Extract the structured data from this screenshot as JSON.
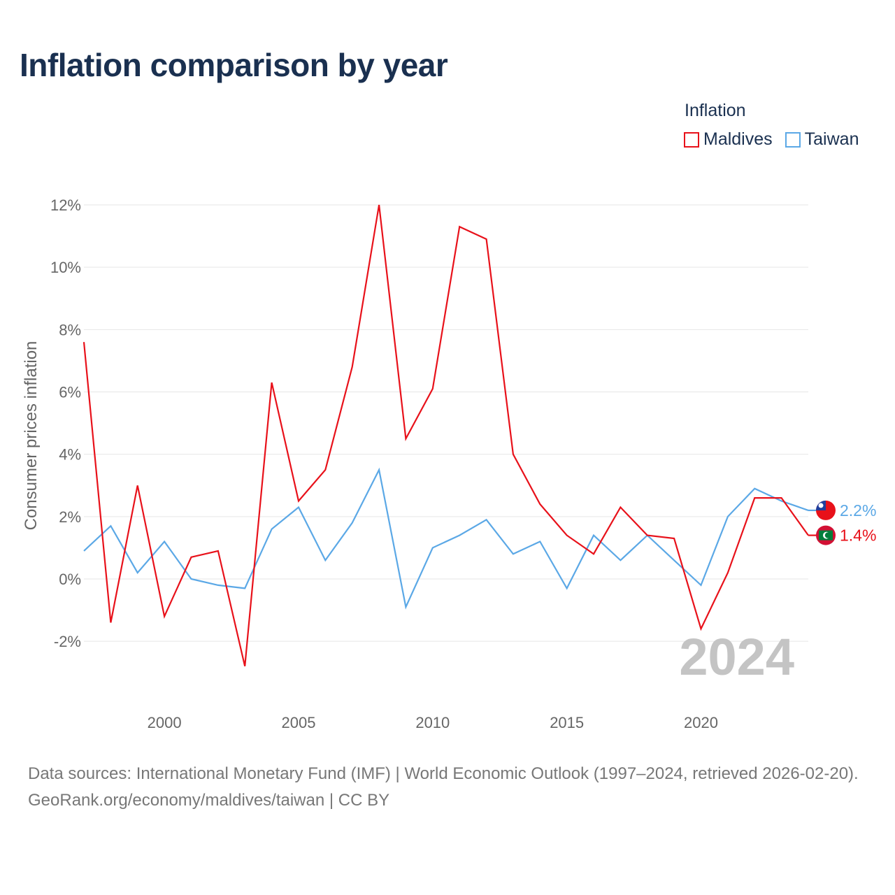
{
  "title": "Inflation comparison by year",
  "legend": {
    "title": "Inflation",
    "items": [
      {
        "label": "Maldives",
        "color": "#e8111a"
      },
      {
        "label": "Taiwan",
        "color": "#5ba8e6"
      }
    ]
  },
  "year_watermark": "2024",
  "footer": {
    "sources": "Data sources: International Monetary Fund (IMF) | World Economic Outlook (1997–2024, retrieved 2026-02-20).",
    "credit": "GeoRank.org/economy/maldives/taiwan | CC BY"
  },
  "chart_data": {
    "type": "line",
    "title": "Inflation comparison by year",
    "xlabel": "",
    "ylabel": "Consumer prices inflation",
    "xlim": [
      1997,
      2024
    ],
    "ylim": [
      -3,
      12
    ],
    "x_ticks": [
      2000,
      2005,
      2010,
      2015,
      2020
    ],
    "y_ticks": [
      -2,
      0,
      2,
      4,
      6,
      8,
      10,
      12
    ],
    "y_tick_labels": [
      "-2%",
      "0%",
      "2%",
      "4%",
      "6%",
      "8%",
      "10%",
      "12%"
    ],
    "grid": true,
    "legend_position": "top-right",
    "x": [
      1997,
      1998,
      1999,
      2000,
      2001,
      2002,
      2003,
      2004,
      2005,
      2006,
      2007,
      2008,
      2009,
      2010,
      2011,
      2012,
      2013,
      2014,
      2015,
      2016,
      2017,
      2018,
      2019,
      2020,
      2021,
      2022,
      2023,
      2024
    ],
    "series": [
      {
        "name": "Maldives",
        "color": "#e8111a",
        "end_label": "1.4%",
        "values": [
          7.6,
          -1.4,
          3.0,
          -1.2,
          0.7,
          0.9,
          -2.8,
          6.3,
          2.5,
          3.5,
          6.8,
          12.0,
          4.5,
          6.1,
          11.3,
          10.9,
          4.0,
          2.4,
          1.4,
          0.8,
          2.3,
          1.4,
          1.3,
          -1.6,
          0.2,
          2.6,
          2.6,
          1.4
        ]
      },
      {
        "name": "Taiwan",
        "color": "#5ba8e6",
        "end_label": "2.2%",
        "values": [
          0.9,
          1.7,
          0.2,
          1.2,
          0.0,
          -0.2,
          -0.3,
          1.6,
          2.3,
          0.6,
          1.8,
          3.5,
          -0.9,
          1.0,
          1.4,
          1.9,
          0.8,
          1.2,
          -0.3,
          1.4,
          0.6,
          1.4,
          0.6,
          -0.2,
          2.0,
          2.9,
          2.5,
          2.2
        ]
      }
    ]
  }
}
